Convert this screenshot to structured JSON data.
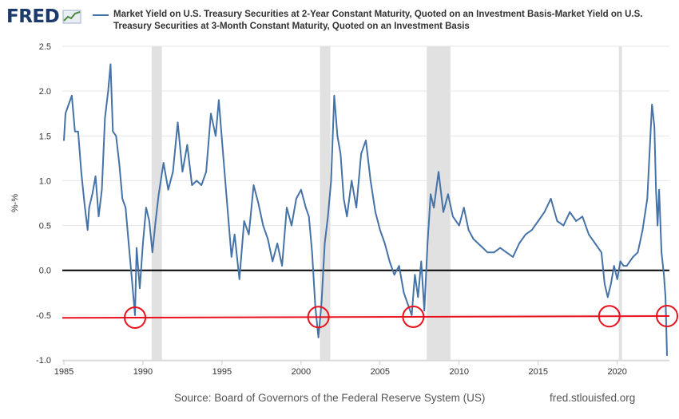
{
  "header": {
    "logo_text": "FRED",
    "legend_label": "Market Yield on U.S. Treasury Securities at 2-Year Constant Maturity, Quoted on an Investment Basis-Market Yield on U.S. Treasury Securities at 3-Month Constant Maturity, Quoted on an Investment Basis"
  },
  "footer": {
    "source": "Source: Board of Governors of the Federal Reserve System (US)",
    "url": "fred.stlouisfed.org"
  },
  "colors": {
    "series": "#4572a7",
    "recession": "#e1e1e1",
    "zero_line": "#000000",
    "annotation": "#e8111d",
    "grid": "#e6e6e6"
  },
  "chart_data": {
    "type": "line",
    "title": "Market Yield on U.S. Treasury Securities at 2-Year Constant Maturity, Quoted on an Investment Basis-Market Yield on U.S. Treasury Securities at 3-Month Constant Maturity, Quoted on an Investment Basis",
    "xlabel": "",
    "ylabel": "%-%",
    "xlim": [
      1984.9,
      2023.3
    ],
    "ylim": [
      -1.0,
      2.5
    ],
    "yticks": [
      -1.0,
      -0.5,
      0.0,
      0.5,
      1.0,
      1.5,
      2.0,
      2.5
    ],
    "ytick_labels": [
      "-1.0",
      "-0.5",
      "0.0",
      "0.5",
      "1.0",
      "1.5",
      "2.0",
      "2.5"
    ],
    "xticks": [
      1985,
      1990,
      1995,
      2000,
      2005,
      2010,
      2015,
      2020
    ],
    "xtick_labels": [
      "1985",
      "1990",
      "1995",
      "2000",
      "2005",
      "2010",
      "2015",
      "2020"
    ],
    "grid": true,
    "recessions": [
      [
        1990.55,
        1991.2
      ],
      [
        2001.2,
        2001.85
      ],
      [
        2007.95,
        2009.45
      ],
      [
        2020.1,
        2020.3
      ]
    ],
    "series": [
      {
        "name": "2-Year minus 3-Month Treasury yield spread",
        "x": [
          1985.0,
          1985.1,
          1985.3,
          1985.5,
          1985.7,
          1985.9,
          1986.1,
          1986.3,
          1986.5,
          1986.6,
          1986.8,
          1987.0,
          1987.2,
          1987.4,
          1987.6,
          1987.8,
          1987.95,
          1988.1,
          1988.3,
          1988.5,
          1988.7,
          1988.9,
          1989.1,
          1989.3,
          1989.5,
          1989.6,
          1989.8,
          1990.0,
          1990.2,
          1990.4,
          1990.6,
          1990.8,
          1991.0,
          1991.3,
          1991.6,
          1991.9,
          1992.2,
          1992.5,
          1992.8,
          1993.1,
          1993.4,
          1993.7,
          1994.0,
          1994.3,
          1994.6,
          1994.8,
          1995.0,
          1995.3,
          1995.6,
          1995.8,
          1996.1,
          1996.4,
          1996.7,
          1997.0,
          1997.3,
          1997.6,
          1997.9,
          1998.2,
          1998.5,
          1998.8,
          1999.1,
          1999.4,
          1999.7,
          2000.0,
          2000.3,
          2000.5,
          2000.7,
          2000.9,
          2001.1,
          2001.3,
          2001.5,
          2001.7,
          2001.9,
          2002.1,
          2002.3,
          2002.5,
          2002.7,
          2002.9,
          2003.2,
          2003.5,
          2003.8,
          2004.1,
          2004.4,
          2004.7,
          2005.0,
          2005.3,
          2005.6,
          2005.9,
          2006.2,
          2006.5,
          2006.8,
          2007.0,
          2007.2,
          2007.4,
          2007.6,
          2007.8,
          2008.0,
          2008.2,
          2008.4,
          2008.7,
          2009.0,
          2009.3,
          2009.6,
          2010.0,
          2010.3,
          2010.6,
          2010.9,
          2011.2,
          2011.5,
          2011.8,
          2012.2,
          2012.6,
          2013.0,
          2013.4,
          2013.8,
          2014.2,
          2014.6,
          2015.0,
          2015.4,
          2015.8,
          2016.2,
          2016.6,
          2017.0,
          2017.4,
          2017.8,
          2018.2,
          2018.6,
          2019.0,
          2019.2,
          2019.4,
          2019.6,
          2019.8,
          2020.0,
          2020.2,
          2020.4,
          2020.6,
          2020.8,
          2021.0,
          2021.3,
          2021.6,
          2021.9,
          2022.1,
          2022.2,
          2022.35,
          2022.45,
          2022.55,
          2022.65,
          2022.8,
          2022.95,
          2023.05,
          2023.15
        ],
        "values": [
          1.45,
          1.75,
          1.85,
          1.95,
          1.55,
          1.55,
          1.1,
          0.75,
          0.45,
          0.7,
          0.85,
          1.05,
          0.6,
          0.9,
          1.7,
          2.0,
          2.3,
          1.55,
          1.5,
          1.2,
          0.8,
          0.7,
          0.3,
          -0.1,
          -0.5,
          0.25,
          -0.2,
          0.3,
          0.7,
          0.55,
          0.2,
          0.55,
          0.85,
          1.2,
          0.9,
          1.1,
          1.65,
          1.1,
          1.4,
          0.95,
          1.0,
          0.95,
          1.1,
          1.75,
          1.5,
          1.9,
          1.45,
          0.8,
          0.15,
          0.4,
          -0.1,
          0.55,
          0.4,
          0.95,
          0.75,
          0.5,
          0.35,
          0.1,
          0.3,
          0.05,
          0.7,
          0.5,
          0.8,
          0.9,
          0.7,
          0.6,
          0.2,
          -0.4,
          -0.75,
          -0.35,
          0.3,
          0.6,
          1.0,
          1.95,
          1.5,
          1.3,
          0.8,
          0.6,
          1.0,
          0.7,
          1.3,
          1.45,
          1.0,
          0.65,
          0.45,
          0.3,
          0.1,
          -0.05,
          0.05,
          -0.25,
          -0.4,
          -0.5,
          -0.05,
          -0.3,
          0.1,
          -0.45,
          0.3,
          0.85,
          0.7,
          1.1,
          0.65,
          0.85,
          0.6,
          0.5,
          0.7,
          0.45,
          0.35,
          0.3,
          0.25,
          0.2,
          0.2,
          0.25,
          0.2,
          0.15,
          0.3,
          0.4,
          0.45,
          0.55,
          0.65,
          0.8,
          0.55,
          0.5,
          0.65,
          0.55,
          0.6,
          0.4,
          0.3,
          0.2,
          -0.15,
          -0.3,
          -0.15,
          0.05,
          -0.1,
          0.1,
          0.05,
          0.05,
          0.1,
          0.15,
          0.2,
          0.45,
          0.8,
          1.5,
          1.85,
          1.6,
          0.9,
          0.5,
          0.9,
          0.2,
          -0.05,
          -0.3,
          -0.95
        ]
      }
    ],
    "annotations": {
      "threshold_line": [
        [
          1984.9,
          -0.53
        ],
        [
          2023.3,
          -0.51
        ]
      ],
      "circled_dates": [
        1989.5,
        2001.1,
        2007.1,
        2019.5,
        2023.15
      ]
    }
  }
}
